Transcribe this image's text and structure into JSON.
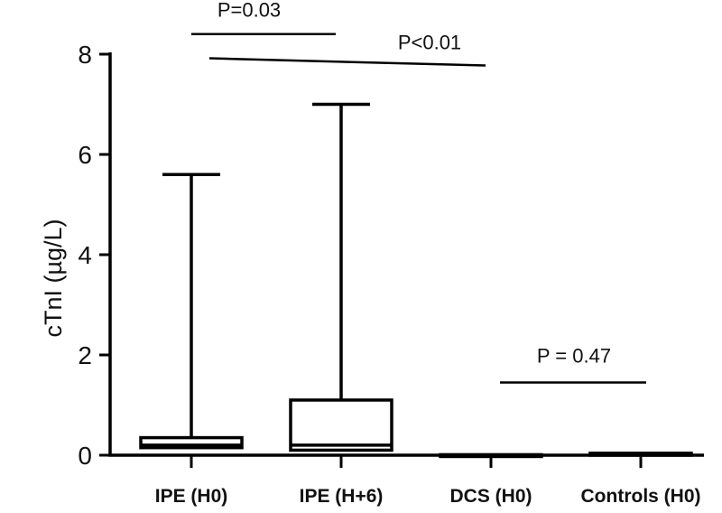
{
  "chart_data": {
    "type": "box",
    "ylabel": "cTnI (µg/L)",
    "xlabel": "",
    "ylim": [
      0,
      8
    ],
    "yticks": [
      "0",
      "2",
      "4",
      "6",
      "8"
    ],
    "categories": [
      "IPE (H0)",
      "IPE (H+6)",
      "DCS (H0)",
      "Controls (H0)"
    ],
    "groups": [
      {
        "label": "IPE (H0)",
        "min": 0,
        "q1": 0.15,
        "median": 0.2,
        "q3": 0.35,
        "max": 5.6
      },
      {
        "label": "IPE (H+6)",
        "min": 0,
        "q1": 0.1,
        "median": 0.2,
        "q3": 1.1,
        "max": 7.0
      },
      {
        "label": "DCS (H0)",
        "min": 0,
        "q1": 0,
        "median": 0,
        "q3": 0.01,
        "max": 0.01
      },
      {
        "label": "Controls (H0)",
        "min": 0,
        "q1": 0,
        "median": 0.02,
        "q3": 0.04,
        "max": 0.04
      }
    ],
    "annotations": [
      {
        "text": "P=0.03",
        "from": 0,
        "to": 1,
        "line_y": 8.4,
        "label_y": 8.75
      },
      {
        "text": "P<0.01",
        "from": 0,
        "to": 2,
        "line_y": 7.9,
        "label_y": 8.1
      },
      {
        "text": "P = 0.47",
        "from": 2,
        "to": 3,
        "line_y": 1.45,
        "label_y": 1.85
      }
    ]
  }
}
